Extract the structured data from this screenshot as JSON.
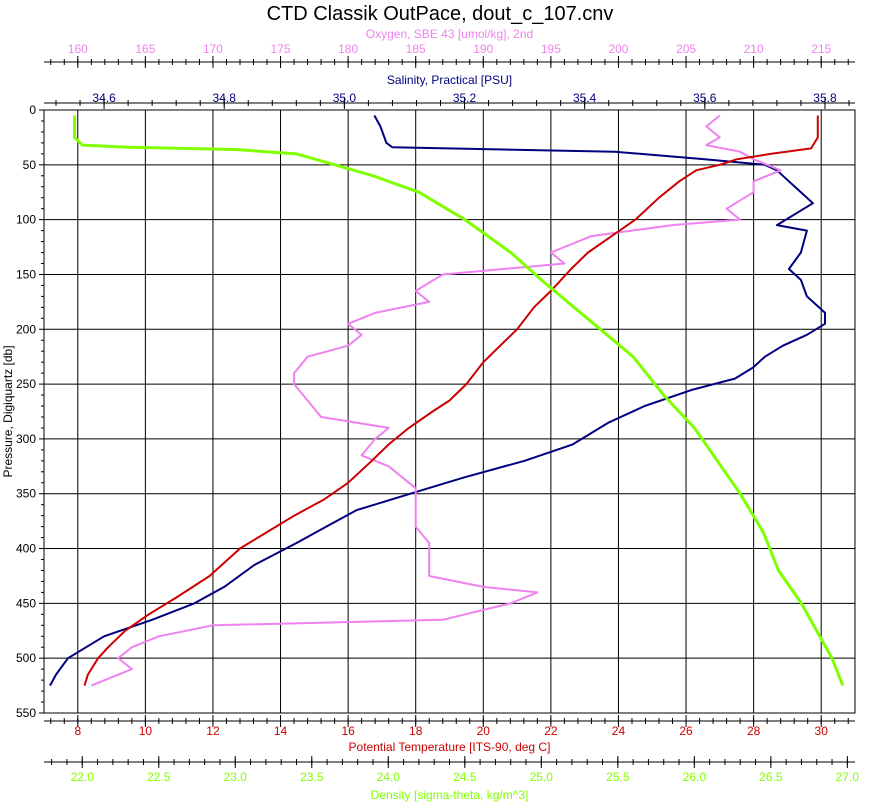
{
  "chart_data": {
    "type": "line",
    "title": "CTD Classik OutPace, dout_c_107.cnv",
    "y_axis": {
      "label": "Pressure, Digiquartz [db]",
      "range": [
        0,
        550
      ],
      "reversed": true,
      "ticks": [
        "0",
        "50",
        "100",
        "150",
        "200",
        "250",
        "300",
        "350",
        "400",
        "450",
        "500",
        "550"
      ]
    },
    "x_axes": [
      {
        "id": "oxygen",
        "label": "Oxygen, SBE 43 [umol/kg], 2nd",
        "position": "top-outer",
        "color": "#ee82ee",
        "range": [
          157.5,
          217.5
        ],
        "ticks": [
          "160",
          "165",
          "170",
          "175",
          "180",
          "185",
          "190",
          "195",
          "200",
          "205",
          "210",
          "215"
        ]
      },
      {
        "id": "salinity",
        "label": "Salinity, Practical [PSU]",
        "position": "top-inner",
        "color": "#000080",
        "range": [
          34.5,
          35.85
        ],
        "ticks": [
          "34.6",
          "34.8",
          "35.0",
          "35.2",
          "35.4",
          "35.6",
          "35.8"
        ]
      },
      {
        "id": "temperature",
        "label": "Potential Temperature [ITS-90, deg C]",
        "position": "bottom-inner",
        "color": "#cc0000",
        "range": [
          7.0,
          31.0
        ],
        "ticks": [
          "8",
          "10",
          "12",
          "14",
          "16",
          "18",
          "20",
          "22",
          "24",
          "26",
          "28",
          "30"
        ],
        "grid": true
      },
      {
        "id": "density",
        "label": "Density [sigma-theta, kg/m^3]",
        "position": "bottom-outer",
        "color": "#7fff00",
        "range": [
          21.75,
          27.05
        ],
        "ticks": [
          "22.0",
          "22.5",
          "23.0",
          "23.5",
          "24.0",
          "24.5",
          "25.0",
          "25.5",
          "26.0",
          "26.5",
          "27.0"
        ]
      }
    ],
    "grid": true,
    "series": [
      {
        "axis": "salinity",
        "color": "#000080",
        "points": [
          [
            35.05,
            5
          ],
          [
            35.06,
            15
          ],
          [
            35.07,
            30
          ],
          [
            35.08,
            34
          ],
          [
            35.45,
            38
          ],
          [
            35.6,
            45
          ],
          [
            35.7,
            50
          ],
          [
            35.72,
            55
          ],
          [
            35.74,
            65
          ],
          [
            35.76,
            75
          ],
          [
            35.78,
            85
          ],
          [
            35.75,
            95
          ],
          [
            35.72,
            105
          ],
          [
            35.77,
            110
          ],
          [
            35.76,
            130
          ],
          [
            35.74,
            145
          ],
          [
            35.76,
            155
          ],
          [
            35.77,
            170
          ],
          [
            35.8,
            185
          ],
          [
            35.8,
            195
          ],
          [
            35.77,
            205
          ],
          [
            35.73,
            215
          ],
          [
            35.7,
            225
          ],
          [
            35.68,
            235
          ],
          [
            35.65,
            245
          ],
          [
            35.58,
            255
          ],
          [
            35.5,
            270
          ],
          [
            35.44,
            285
          ],
          [
            35.38,
            305
          ],
          [
            35.3,
            320
          ],
          [
            35.2,
            335
          ],
          [
            35.14,
            345
          ],
          [
            35.08,
            355
          ],
          [
            35.02,
            365
          ],
          [
            34.97,
            380
          ],
          [
            34.92,
            395
          ],
          [
            34.85,
            415
          ],
          [
            34.8,
            435
          ],
          [
            34.75,
            450
          ],
          [
            34.68,
            465
          ],
          [
            34.6,
            480
          ],
          [
            34.54,
            500
          ],
          [
            34.52,
            515
          ],
          [
            34.51,
            525
          ]
        ]
      },
      {
        "axis": "oxygen",
        "color": "#ee82ee",
        "points": [
          [
            207.5,
            5
          ],
          [
            206.5,
            15
          ],
          [
            207.5,
            25
          ],
          [
            206.5,
            32
          ],
          [
            209,
            38
          ],
          [
            210,
            45
          ],
          [
            212,
            55
          ],
          [
            210,
            65
          ],
          [
            210,
            75
          ],
          [
            208,
            90
          ],
          [
            209,
            100
          ],
          [
            204,
            105
          ],
          [
            198,
            115
          ],
          [
            195,
            130
          ],
          [
            196,
            140
          ],
          [
            187,
            150
          ],
          [
            185,
            165
          ],
          [
            186,
            175
          ],
          [
            182,
            185
          ],
          [
            180,
            195
          ],
          [
            181,
            205
          ],
          [
            180,
            215
          ],
          [
            177,
            225
          ],
          [
            176,
            240
          ],
          [
            176,
            250
          ],
          [
            177,
            265
          ],
          [
            178,
            280
          ],
          [
            183,
            290
          ],
          [
            182,
            300
          ],
          [
            181,
            315
          ],
          [
            183,
            325
          ],
          [
            184,
            335
          ],
          [
            185,
            345
          ],
          [
            185,
            360
          ],
          [
            185,
            380
          ],
          [
            186,
            395
          ],
          [
            186,
            410
          ],
          [
            186,
            425
          ],
          [
            190,
            435
          ],
          [
            194,
            440
          ],
          [
            192,
            450
          ],
          [
            187,
            465
          ],
          [
            170,
            470
          ],
          [
            166,
            480
          ],
          [
            164,
            490
          ],
          [
            163,
            500
          ],
          [
            164,
            510
          ],
          [
            162,
            520
          ],
          [
            161,
            525
          ]
        ]
      },
      {
        "axis": "temperature",
        "color": "#cc0000",
        "points": [
          [
            29.9,
            5
          ],
          [
            29.9,
            25
          ],
          [
            29.7,
            35
          ],
          [
            28.5,
            40
          ],
          [
            27.5,
            45
          ],
          [
            27.0,
            50
          ],
          [
            26.3,
            55
          ],
          [
            25.8,
            65
          ],
          [
            25.2,
            80
          ],
          [
            24.5,
            100
          ],
          [
            23.8,
            115
          ],
          [
            23.1,
            130
          ],
          [
            22.6,
            145
          ],
          [
            22.0,
            165
          ],
          [
            21.5,
            180
          ],
          [
            21.0,
            200
          ],
          [
            20.5,
            215
          ],
          [
            20.0,
            230
          ],
          [
            19.5,
            250
          ],
          [
            19.0,
            265
          ],
          [
            18.5,
            275
          ],
          [
            17.8,
            290
          ],
          [
            17.2,
            305
          ],
          [
            16.7,
            320
          ],
          [
            16.0,
            340
          ],
          [
            15.3,
            355
          ],
          [
            14.4,
            370
          ],
          [
            13.6,
            385
          ],
          [
            12.8,
            400
          ],
          [
            11.9,
            425
          ],
          [
            10.9,
            445
          ],
          [
            10.1,
            460
          ],
          [
            9.4,
            475
          ],
          [
            8.9,
            490
          ],
          [
            8.6,
            500
          ],
          [
            8.3,
            515
          ],
          [
            8.2,
            525
          ]
        ]
      },
      {
        "axis": "density",
        "color": "#7fff00",
        "points": [
          [
            21.95,
            5
          ],
          [
            21.95,
            25
          ],
          [
            22.0,
            32
          ],
          [
            22.3,
            34
          ],
          [
            23.0,
            36
          ],
          [
            23.4,
            40
          ],
          [
            23.6,
            48
          ],
          [
            23.9,
            60
          ],
          [
            24.2,
            75
          ],
          [
            24.5,
            100
          ],
          [
            24.8,
            130
          ],
          [
            25.0,
            155
          ],
          [
            25.3,
            190
          ],
          [
            25.6,
            225
          ],
          [
            25.8,
            260
          ],
          [
            26.0,
            290
          ],
          [
            26.15,
            320
          ],
          [
            26.3,
            350
          ],
          [
            26.45,
            385
          ],
          [
            26.55,
            420
          ],
          [
            26.7,
            450
          ],
          [
            26.8,
            475
          ],
          [
            26.9,
            500
          ],
          [
            26.97,
            525
          ]
        ]
      }
    ]
  }
}
